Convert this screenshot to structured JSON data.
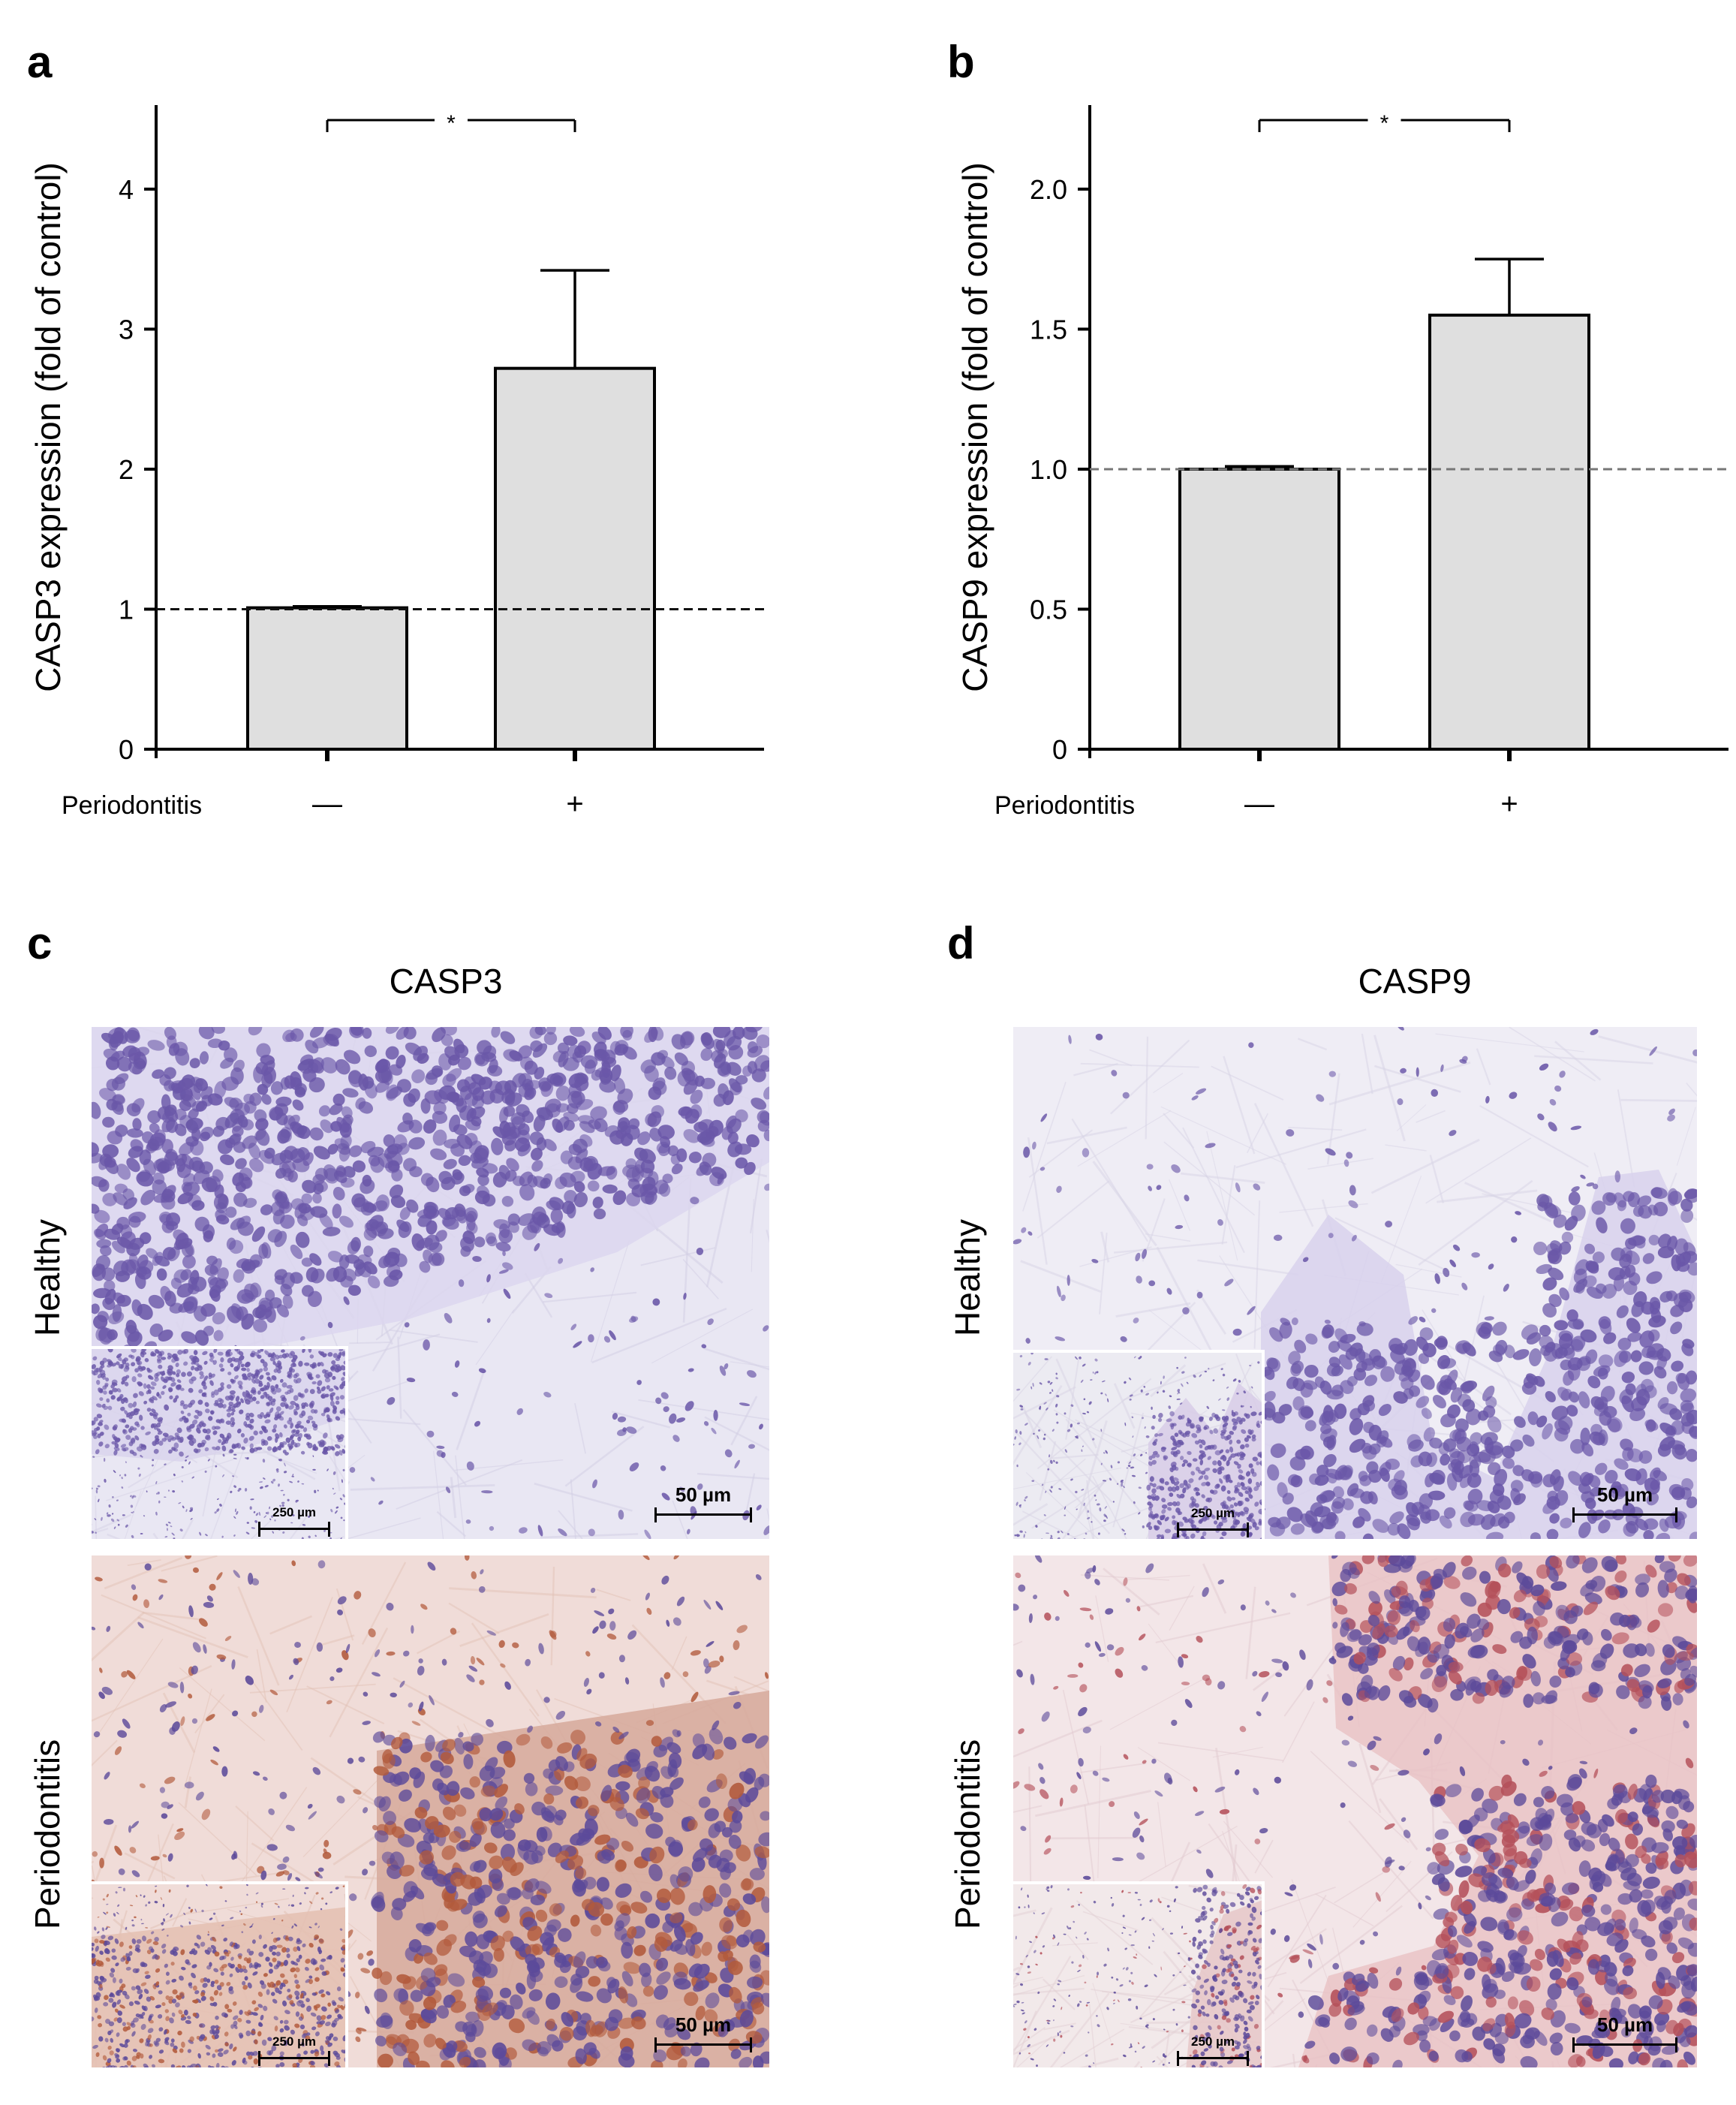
{
  "panels": {
    "a": "a",
    "b": "b",
    "c": "c",
    "d": "d"
  },
  "chart_data": [
    {
      "type": "bar",
      "panel": "a",
      "categories": [
        "—",
        "+"
      ],
      "category_axis_label": "Periodontitis",
      "values": [
        1.01,
        2.72
      ],
      "error_upper": [
        1.02,
        3.42
      ],
      "ylabel": "CASP3 expression (fold of control)",
      "yticks": [
        "0",
        "1",
        "2",
        "3",
        "4"
      ],
      "ylim": [
        0,
        4.6
      ],
      "reference_line": 1,
      "significance": "*",
      "bar_color": "#dfdfdf",
      "grid": false
    },
    {
      "type": "bar",
      "panel": "b",
      "categories": [
        "—",
        "+"
      ],
      "category_axis_label": "Periodontitis",
      "values": [
        1.0,
        1.55
      ],
      "error_upper": [
        1.01,
        1.75
      ],
      "ylabel": "CASP9 expression (fold of control)",
      "yticks": [
        "0",
        "0.5",
        "1.0",
        "1.5",
        "2.0"
      ],
      "ylim": [
        0,
        2.3
      ],
      "reference_line": 1,
      "significance": "*",
      "bar_color": "#dfdfdf",
      "grid": false
    }
  ],
  "micrographs": {
    "casp3_title": "CASP3",
    "casp9_title": "CASP9",
    "row_healthy": "Healthy",
    "row_periodontitis": "Periodontitis",
    "scale_main": "50 µm",
    "scale_inset": "250 µm",
    "colors": {
      "healthy_bg": "#e9e7f3",
      "healthy_nuclei": "#6a57a8",
      "perio_bg": "#f0dcd8",
      "perio_epith": "#d6a99b",
      "perio_nuclei_brown": "#b25a3c",
      "perio_nuclei_purple": "#5c4a9a"
    }
  }
}
